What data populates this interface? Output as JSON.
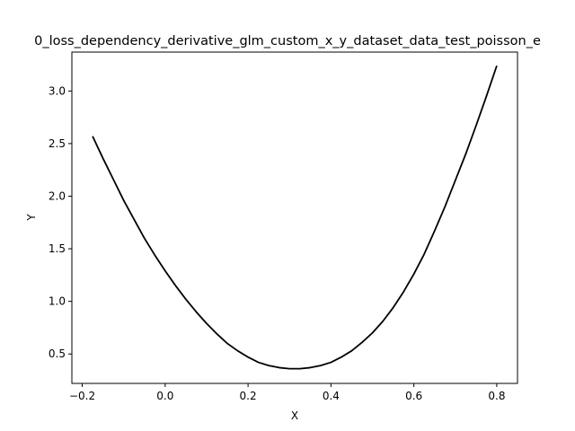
{
  "chart_data": {
    "type": "line",
    "title": "0_loss_dependency_derivative_glm_custom_x_y_dataset_data_test_poisson_e",
    "xlabel": "X",
    "ylabel": "Y",
    "xlim": [
      -0.225,
      0.85
    ],
    "ylim": [
      0.22,
      3.37
    ],
    "xticks": [
      -0.2,
      0.0,
      0.2,
      0.4,
      0.6,
      0.8
    ],
    "xtick_labels": [
      "−0.2",
      "0.0",
      "0.2",
      "0.4",
      "0.6",
      "0.8"
    ],
    "yticks": [
      0.5,
      1.0,
      1.5,
      2.0,
      2.5,
      3.0
    ],
    "ytick_labels": [
      "0.5",
      "1.0",
      "1.5",
      "2.0",
      "2.5",
      "3.0"
    ],
    "grid": false,
    "line_color": "#000000",
    "series": [
      {
        "x": [
          -0.175,
          -0.15,
          -0.125,
          -0.1,
          -0.075,
          -0.05,
          -0.025,
          0.0,
          0.025,
          0.05,
          0.075,
          0.1,
          0.125,
          0.15,
          0.175,
          0.2,
          0.225,
          0.25,
          0.275,
          0.3,
          0.325,
          0.35,
          0.375,
          0.4,
          0.425,
          0.45,
          0.475,
          0.5,
          0.525,
          0.55,
          0.575,
          0.6,
          0.625,
          0.65,
          0.675,
          0.7,
          0.725,
          0.75,
          0.775,
          0.8
        ],
        "y": [
          2.57,
          2.36,
          2.16,
          1.96,
          1.78,
          1.6,
          1.44,
          1.29,
          1.15,
          1.02,
          0.9,
          0.79,
          0.69,
          0.6,
          0.53,
          0.47,
          0.42,
          0.39,
          0.37,
          0.36,
          0.36,
          0.37,
          0.39,
          0.42,
          0.47,
          0.53,
          0.61,
          0.7,
          0.81,
          0.94,
          1.09,
          1.26,
          1.45,
          1.67,
          1.9,
          2.15,
          2.4,
          2.67,
          2.95,
          3.24
        ]
      }
    ]
  }
}
